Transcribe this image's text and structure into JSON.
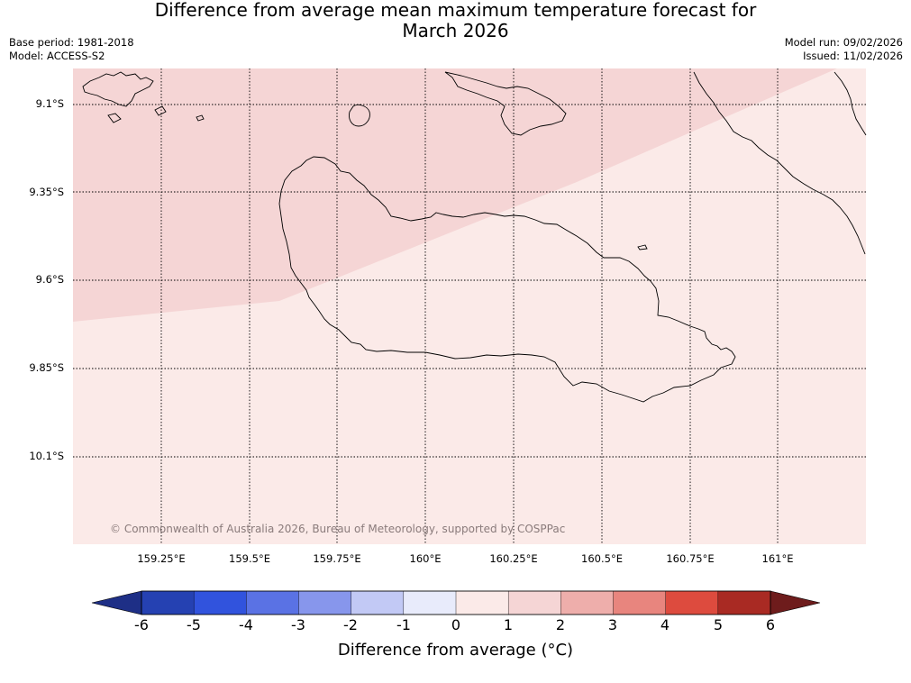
{
  "title_line1": "Difference from average mean maximum temperature forecast for",
  "title_line2": "March 2026",
  "base_period": "Base period: 1981-2018",
  "model": "Model: ACCESS-S2",
  "model_run": "Model run: 09/02/2026",
  "issued": "Issued: 11/02/2026",
  "lat_labels": [
    "9.1°S",
    "9.35°S",
    "9.6°S",
    "9.85°S",
    "10.1°S"
  ],
  "lon_labels": [
    "159.25°E",
    "159.5°E",
    "159.75°E",
    "160°E",
    "160.25°E",
    "160.5°E",
    "160.75°E",
    "161°E"
  ],
  "copyright": "© Commonwealth of Australia 2026, Bureau of Meteorology, supported by COSPPac",
  "colorbar": {
    "ticks": [
      "-6",
      "-5",
      "-4",
      "-3",
      "-2",
      "-1",
      "0",
      "1",
      "2",
      "3",
      "4",
      "5",
      "6"
    ],
    "colors": [
      "#1e2f86",
      "#2541b2",
      "#3153dd",
      "#5a72e4",
      "#8796ec",
      "#c2c9f5",
      "#e8ebfb",
      "#fbeae8",
      "#f5d5d5",
      "#eeaeab",
      "#e8857e",
      "#dd4b3e",
      "#a92a23",
      "#6e1c1c"
    ],
    "label": "Difference from average (°C)"
  },
  "forecast_regions": [
    {
      "category": "1 to 2",
      "color": "#f5d5d5"
    },
    {
      "category": "0 to 1",
      "color": "#fbeae8"
    }
  ]
}
